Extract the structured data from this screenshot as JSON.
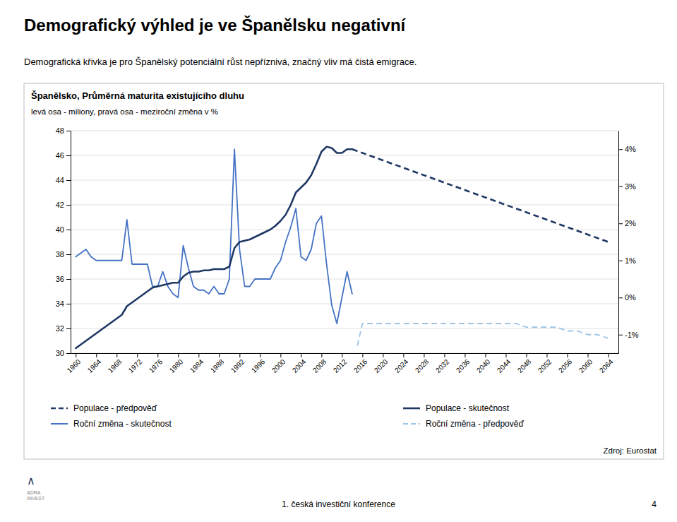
{
  "chart_data": {
    "type": "line",
    "title": "Demografický výhled je ve Španělsku negativní",
    "subtitle": "Demografická křivka je pro Španělský potenciální růst nepříznivá, značný vliv má čistá emigrace.",
    "annotations": [
      "Španělsko, Průměrná maturita existujícího dluhu",
      "levá osa - miliony, pravá osa - meziroční změna v %",
      "Zdroj: Eurostat",
      "1. česká investiční konference",
      "4",
      "∧",
      "ADRA\nINVEST"
    ],
    "xlim": [
      1959,
      2066
    ],
    "xticks": [
      1960,
      1964,
      1968,
      1972,
      1976,
      1980,
      1984,
      1988,
      1992,
      1996,
      2000,
      2004,
      2008,
      2012,
      2016,
      2020,
      2024,
      2028,
      2032,
      2036,
      2040,
      2044,
      2048,
      2052,
      2056,
      2060,
      2064
    ],
    "ylim": [
      30,
      48
    ],
    "yticks": [
      30,
      32,
      34,
      36,
      38,
      40,
      42,
      44,
      46,
      48
    ],
    "y2lim": [
      -0.015,
      0.045
    ],
    "y2ticks": [
      {
        "value": -0.01,
        "label": "-1%"
      },
      {
        "value": 0.0,
        "label": "0%"
      },
      {
        "value": 0.01,
        "label": "1%"
      },
      {
        "value": 0.02,
        "label": "2%"
      },
      {
        "value": 0.03,
        "label": "3%"
      },
      {
        "value": 0.04,
        "label": "4%"
      }
    ],
    "grid": true,
    "legend": "bottom",
    "series": [
      {
        "name": "Populace - skutečnost",
        "color": "#1f3864",
        "line_style": "solid",
        "x": [
          1960,
          1961,
          1962,
          1963,
          1964,
          1965,
          1966,
          1967,
          1968,
          1969,
          1970,
          1971,
          1972,
          1973,
          1974,
          1975,
          1976,
          1977,
          1978,
          1979,
          1980,
          1981,
          1982,
          1983,
          1984,
          1985,
          1986,
          1987,
          1988,
          1989,
          1990,
          1991,
          1992,
          1993,
          1994,
          1995,
          1996,
          1997,
          1998,
          1999,
          2000,
          2001,
          2002,
          2003,
          2004,
          2005,
          2006,
          2007,
          2008,
          2009,
          2010,
          2011,
          2012,
          2013,
          2014
        ],
        "values": [
          30.4,
          30.7,
          31.0,
          31.3,
          31.6,
          31.9,
          32.2,
          32.5,
          32.8,
          33.1,
          33.8,
          34.1,
          34.4,
          34.7,
          35.0,
          35.3,
          35.4,
          35.5,
          35.6,
          35.7,
          35.7,
          36.2,
          36.5,
          36.6,
          36.6,
          36.7,
          36.7,
          36.8,
          36.8,
          36.8,
          37.0,
          38.5,
          39.0,
          39.1,
          39.2,
          39.4,
          39.6,
          39.8,
          40.0,
          40.3,
          40.7,
          41.2,
          42.0,
          43.0,
          43.4,
          43.8,
          44.4,
          45.3,
          46.3,
          46.7,
          46.6,
          46.2,
          46.2,
          46.5,
          46.5
        ]
      },
      {
        "name": "Populace - předpověď",
        "color": "#1f3864",
        "line_style": "dashed",
        "x": [
          2014,
          2016,
          2018,
          2020,
          2022,
          2024,
          2026,
          2028,
          2030,
          2032,
          2034,
          2036,
          2038,
          2040,
          2042,
          2044,
          2046,
          2048,
          2050,
          2052,
          2054,
          2056,
          2058,
          2060,
          2062,
          2064
        ],
        "values": [
          46.5,
          46.2,
          45.9,
          45.6,
          45.3,
          45.0,
          44.7,
          44.4,
          44.1,
          43.8,
          43.5,
          43.2,
          42.9,
          42.6,
          42.3,
          42.0,
          41.7,
          41.4,
          41.1,
          40.8,
          40.5,
          40.2,
          39.9,
          39.6,
          39.3,
          39.0
        ]
      },
      {
        "name": "Roční změna - skutečnost",
        "color": "#4472c4",
        "line_style": "solid",
        "axis": "y2",
        "x": [
          1960,
          1961,
          1962,
          1963,
          1964,
          1965,
          1966,
          1967,
          1968,
          1969,
          1970,
          1971,
          1972,
          1973,
          1974,
          1975,
          1976,
          1977,
          1978,
          1979,
          1980,
          1981,
          1982,
          1983,
          1984,
          1985,
          1986,
          1987,
          1988,
          1989,
          1990,
          1991,
          1992,
          1993,
          1994,
          1995,
          1996,
          1997,
          1998,
          1999,
          2000,
          2001,
          2002,
          2003,
          2004,
          2005,
          2006,
          2007,
          2008,
          2009,
          2010,
          2011,
          2012,
          2013,
          2014
        ],
        "values": [
          0.011,
          0.012,
          0.013,
          0.011,
          0.01,
          0.01,
          0.01,
          0.01,
          0.01,
          0.01,
          0.021,
          0.009,
          0.009,
          0.009,
          0.009,
          0.003,
          0.003,
          0.007,
          0.003,
          0.001,
          0.0,
          0.014,
          0.008,
          0.003,
          0.002,
          0.002,
          0.001,
          0.003,
          0.001,
          0.001,
          0.005,
          0.04,
          0.013,
          0.003,
          0.003,
          0.005,
          0.005,
          0.005,
          0.005,
          0.008,
          0.01,
          0.015,
          0.019,
          0.024,
          0.011,
          0.01,
          0.013,
          0.02,
          0.022,
          0.009,
          -0.002,
          -0.007,
          0.0,
          0.007,
          0.001
        ]
      },
      {
        "name": "Roční změna - předpověď",
        "color": "#9dc3e6",
        "line_style": "dashed",
        "axis": "y2",
        "x": [
          2015,
          2016,
          2017,
          2018,
          2019,
          2020,
          2022,
          2024,
          2026,
          2028,
          2030,
          2032,
          2034,
          2036,
          2038,
          2040,
          2042,
          2044,
          2046,
          2048,
          2050,
          2052,
          2054,
          2056,
          2058,
          2060,
          2062,
          2064
        ],
        "values": [
          -0.013,
          -0.007,
          -0.007,
          -0.007,
          -0.007,
          -0.007,
          -0.007,
          -0.007,
          -0.007,
          -0.007,
          -0.007,
          -0.007,
          -0.007,
          -0.007,
          -0.007,
          -0.007,
          -0.007,
          -0.007,
          -0.007,
          -0.008,
          -0.008,
          -0.008,
          -0.008,
          -0.009,
          -0.009,
          -0.01,
          -0.01,
          -0.011
        ]
      }
    ]
  }
}
